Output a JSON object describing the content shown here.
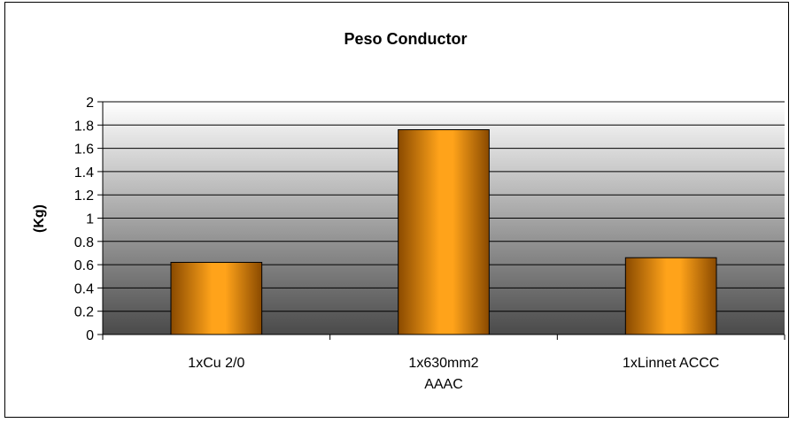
{
  "chart_data": {
    "type": "bar",
    "title": "Peso Conductor",
    "ylabel": "(Kg)",
    "xlabel": "",
    "categories": [
      [
        "1xCu 2/0"
      ],
      [
        "1x630mm2",
        "AAAC"
      ],
      [
        "1xLinnet ACCC"
      ]
    ],
    "values": [
      0.62,
      1.76,
      0.66
    ],
    "ylim": [
      0,
      2
    ],
    "yticks": [
      "0",
      "0.2",
      "0.4",
      "0.6",
      "0.8",
      "1",
      "1.2",
      "1.4",
      "1.6",
      "1.8",
      "2"
    ],
    "grid": true,
    "colors": {
      "bar_light": "#ffa31a",
      "bar_dark": "#8a4a00",
      "plot_top": "#ffffff",
      "plot_bottom": "#4a4a4a"
    }
  }
}
